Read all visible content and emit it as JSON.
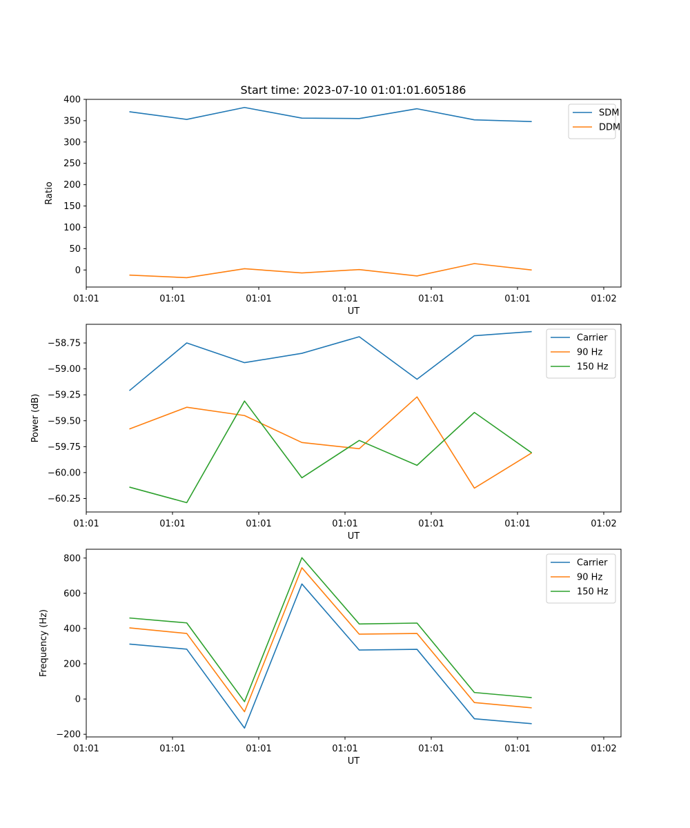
{
  "title": "Start time: 2023-07-10 01:01:01.605186",
  "colors": {
    "blue": "#1f77b4",
    "orange": "#ff7f0e",
    "green": "#2ca02c"
  },
  "chart_data": [
    {
      "type": "line",
      "title": "Start time: 2023-07-10 01:01:01.605186",
      "xlabel": "UT",
      "ylabel": "Ratio",
      "xlim": [
        0,
        12.4
      ],
      "x": [
        1,
        2.33,
        3.67,
        5,
        6.33,
        7.67,
        9,
        10.33
      ],
      "x_ticks": [
        0,
        2,
        4,
        6,
        8,
        10,
        12
      ],
      "x_tick_labels": [
        "01:01",
        "01:01",
        "01:01",
        "01:01",
        "01:01",
        "01:01",
        "01:02"
      ],
      "ylim": [
        -40,
        400
      ],
      "y_ticks": [
        0,
        50,
        100,
        150,
        200,
        250,
        300,
        350,
        400
      ],
      "y_tick_labels": [
        "0",
        "50",
        "100",
        "150",
        "200",
        "250",
        "300",
        "350",
        "400"
      ],
      "legend": "top-right",
      "series": [
        {
          "name": "SDM",
          "color": "#1f77b4",
          "values": [
            371,
            353,
            381,
            356,
            355,
            378,
            352,
            348
          ]
        },
        {
          "name": "DDM",
          "color": "#ff7f0e",
          "values": [
            -12,
            -18,
            3,
            -7,
            1,
            -14,
            15,
            0
          ]
        }
      ]
    },
    {
      "type": "line",
      "xlabel": "UT",
      "ylabel": "Power (dB)",
      "xlim": [
        0,
        12.4
      ],
      "x": [
        1,
        2.33,
        3.67,
        5,
        6.33,
        7.67,
        9,
        10.33
      ],
      "x_ticks": [
        0,
        2,
        4,
        6,
        8,
        10,
        12
      ],
      "x_tick_labels": [
        "01:01",
        "01:01",
        "01:01",
        "01:01",
        "01:01",
        "01:01",
        "01:02"
      ],
      "ylim": [
        -60.38,
        -58.57
      ],
      "y_ticks": [
        -60.25,
        -60.0,
        -59.75,
        -59.5,
        -59.25,
        -59.0,
        -58.75
      ],
      "y_tick_labels": [
        "−60.25",
        "−60.00",
        "−59.75",
        "−59.50",
        "−59.25",
        "−59.00",
        "−58.75"
      ],
      "legend": "top-right",
      "series": [
        {
          "name": "Carrier",
          "color": "#1f77b4",
          "values": [
            -59.21,
            -58.75,
            -58.94,
            -58.85,
            -58.69,
            -59.1,
            -58.68,
            -58.64
          ]
        },
        {
          "name": "90 Hz",
          "color": "#ff7f0e",
          "values": [
            -59.58,
            -59.37,
            -59.45,
            -59.71,
            -59.77,
            -59.27,
            -60.15,
            -59.81
          ]
        },
        {
          "name": "150 Hz",
          "color": "#2ca02c",
          "values": [
            -60.14,
            -60.29,
            -59.31,
            -60.05,
            -59.69,
            -59.93,
            -59.42,
            -59.81
          ]
        }
      ]
    },
    {
      "type": "line",
      "xlabel": "UT",
      "ylabel": "Frequency (Hz)",
      "xlim": [
        0,
        12.4
      ],
      "x": [
        1,
        2.33,
        3.67,
        5,
        6.33,
        7.67,
        9,
        10.33
      ],
      "x_ticks": [
        0,
        2,
        4,
        6,
        8,
        10,
        12
      ],
      "x_tick_labels": [
        "01:01",
        "01:01",
        "01:01",
        "01:01",
        "01:01",
        "01:01",
        "01:02"
      ],
      "ylim": [
        -215,
        850
      ],
      "y_ticks": [
        -200,
        0,
        200,
        400,
        600,
        800
      ],
      "y_tick_labels": [
        "−200",
        "0",
        "200",
        "400",
        "600",
        "800"
      ],
      "legend": "top-right",
      "series": [
        {
          "name": "Carrier",
          "color": "#1f77b4",
          "values": [
            312,
            283,
            -165,
            653,
            278,
            282,
            -112,
            -140
          ]
        },
        {
          "name": "90 Hz",
          "color": "#ff7f0e",
          "values": [
            404,
            372,
            -72,
            745,
            368,
            372,
            -20,
            -50
          ]
        },
        {
          "name": "150 Hz",
          "color": "#2ca02c",
          "values": [
            460,
            432,
            -15,
            802,
            426,
            431,
            37,
            8
          ]
        }
      ]
    }
  ]
}
